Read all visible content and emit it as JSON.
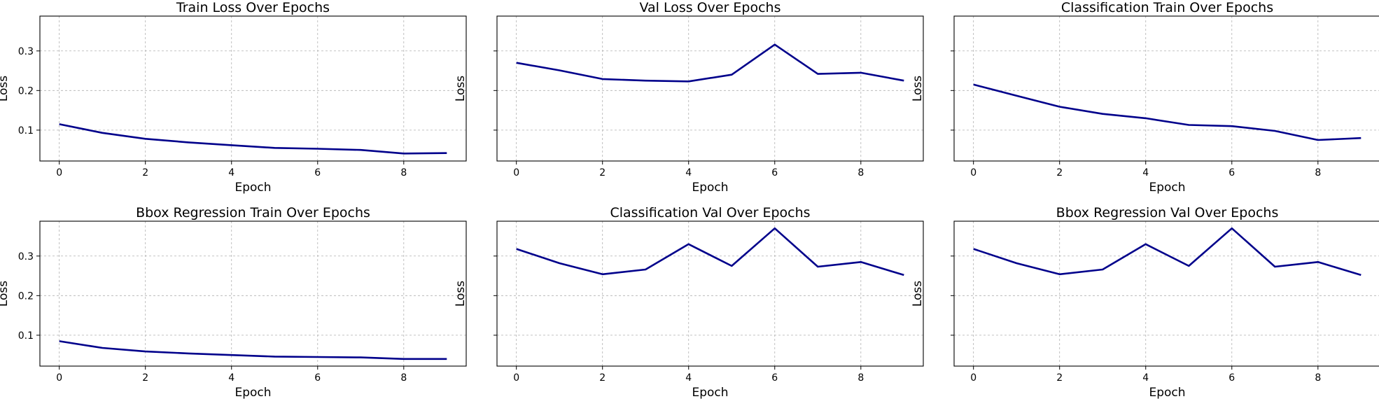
{
  "style": {
    "line_color": "#00008b",
    "grid_color": "#b0b0b0",
    "background": "#ffffff"
  },
  "chart_data": [
    {
      "type": "line",
      "title": "Train Loss Over Epochs",
      "xlabel": "Epoch",
      "ylabel": "Loss",
      "x": [
        0,
        1,
        2,
        3,
        4,
        5,
        6,
        7,
        8,
        9
      ],
      "series": [
        {
          "values": [
            0.115,
            0.093,
            0.078,
            0.069,
            0.062,
            0.055,
            0.053,
            0.05,
            0.041,
            0.042
          ]
        }
      ],
      "xlim": [
        -0.45,
        9.45
      ],
      "ylim": [
        0.022,
        0.388
      ],
      "xticks": [
        0,
        2,
        4,
        6,
        8
      ],
      "yticks": [
        0.1,
        0.2,
        0.3
      ],
      "ytick_labels": [
        "0.1",
        "0.2",
        "0.3"
      ],
      "grid": true
    },
    {
      "type": "line",
      "title": "Val Loss Over Epochs",
      "xlabel": "Epoch",
      "ylabel": "Loss",
      "x": [
        0,
        1,
        2,
        3,
        4,
        5,
        6,
        7,
        8,
        9
      ],
      "series": [
        {
          "values": [
            0.27,
            0.251,
            0.229,
            0.225,
            0.223,
            0.24,
            0.316,
            0.242,
            0.245,
            0.225
          ]
        }
      ],
      "xlim": [
        -0.45,
        9.45
      ],
      "ylim": [
        0.022,
        0.388
      ],
      "xticks": [
        0,
        2,
        4,
        6,
        8
      ],
      "yticks": [
        0.1,
        0.2,
        0.3
      ],
      "ytick_labels": [
        "",
        "",
        ""
      ],
      "grid": true
    },
    {
      "type": "line",
      "title": "Classification Train Over Epochs",
      "xlabel": "Epoch",
      "ylabel": "Loss",
      "x": [
        0,
        1,
        2,
        3,
        4,
        5,
        6,
        7,
        8,
        9
      ],
      "series": [
        {
          "values": [
            0.215,
            0.187,
            0.159,
            0.141,
            0.13,
            0.113,
            0.11,
            0.098,
            0.075,
            0.08
          ]
        }
      ],
      "xlim": [
        -0.45,
        9.45
      ],
      "ylim": [
        0.022,
        0.388
      ],
      "xticks": [
        0,
        2,
        4,
        6,
        8
      ],
      "yticks": [
        0.1,
        0.2,
        0.3
      ],
      "ytick_labels": [
        "",
        "",
        ""
      ],
      "grid": true
    },
    {
      "type": "line",
      "title": "Bbox Regression Train Over Epochs",
      "xlabel": "Epoch",
      "ylabel": "Loss",
      "x": [
        0,
        1,
        2,
        3,
        4,
        5,
        6,
        7,
        8,
        9
      ],
      "series": [
        {
          "values": [
            0.085,
            0.068,
            0.059,
            0.054,
            0.05,
            0.046,
            0.045,
            0.044,
            0.04,
            0.04
          ]
        }
      ],
      "xlim": [
        -0.45,
        9.45
      ],
      "ylim": [
        0.022,
        0.388
      ],
      "xticks": [
        0,
        2,
        4,
        6,
        8
      ],
      "yticks": [
        0.1,
        0.2,
        0.3
      ],
      "ytick_labels": [
        "0.1",
        "0.2",
        "0.3"
      ],
      "grid": true
    },
    {
      "type": "line",
      "title": "Classification Val Over Epochs",
      "xlabel": "Epoch",
      "ylabel": "Loss",
      "x": [
        0,
        1,
        2,
        3,
        4,
        5,
        6,
        7,
        8,
        9
      ],
      "series": [
        {
          "values": [
            0.318,
            0.282,
            0.254,
            0.266,
            0.33,
            0.275,
            0.37,
            0.273,
            0.285,
            0.252
          ]
        }
      ],
      "xlim": [
        -0.45,
        9.45
      ],
      "ylim": [
        0.022,
        0.388
      ],
      "xticks": [
        0,
        2,
        4,
        6,
        8
      ],
      "yticks": [
        0.1,
        0.2,
        0.3
      ],
      "ytick_labels": [
        "",
        "",
        ""
      ],
      "grid": true
    },
    {
      "type": "line",
      "title": "Bbox Regression Val Over Epochs",
      "xlabel": "Epoch",
      "ylabel": "Loss",
      "x": [
        0,
        1,
        2,
        3,
        4,
        5,
        6,
        7,
        8,
        9
      ],
      "series": [
        {
          "values": [
            0.318,
            0.282,
            0.254,
            0.266,
            0.33,
            0.275,
            0.37,
            0.273,
            0.285,
            0.252
          ]
        }
      ],
      "xlim": [
        -0.45,
        9.45
      ],
      "ylim": [
        0.022,
        0.388
      ],
      "xticks": [
        0,
        2,
        4,
        6,
        8
      ],
      "yticks": [
        0.1,
        0.2,
        0.3
      ],
      "ytick_labels": [
        "",
        "",
        ""
      ],
      "grid": true
    }
  ]
}
